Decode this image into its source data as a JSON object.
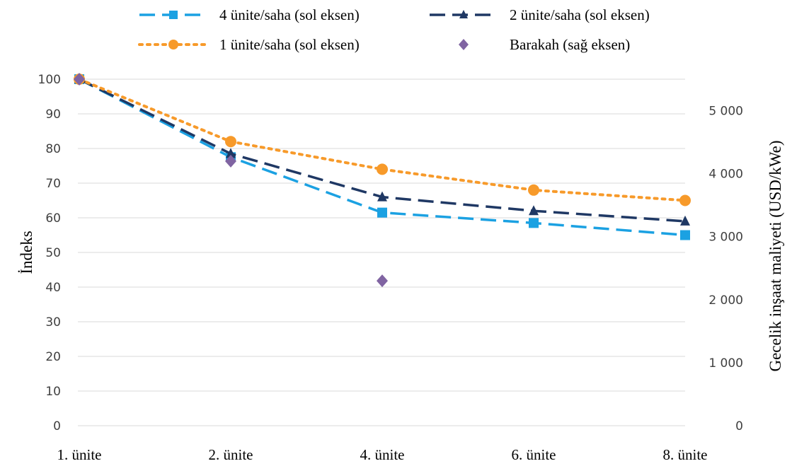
{
  "chart_data": {
    "type": "line",
    "categories": [
      "1. ünite",
      "2. ünite",
      "4. ünite",
      "6. ünite",
      "8. ünite"
    ],
    "y_left": {
      "label": "İndeks",
      "min": 0,
      "max": 100,
      "step": 10,
      "ticks": [
        "0",
        "10",
        "20",
        "30",
        "40",
        "50",
        "60",
        "70",
        "80",
        "90",
        "100"
      ]
    },
    "y_right": {
      "label": "Gecelik inşaat maliyeti (USD/kWe)",
      "min": 0,
      "max": 5500,
      "step": 1000,
      "ticks": [
        "0",
        "1 000",
        "2 000",
        "3 000",
        "4 000",
        "5 000"
      ]
    },
    "grid": true,
    "legend_position": "top",
    "series": [
      {
        "name": "4 ünite/saha (sol eksen)",
        "axis": "left",
        "color": "#1ba1e2",
        "marker": "square",
        "dash": "dash",
        "values": [
          100,
          77.5,
          61.5,
          58.5,
          55
        ]
      },
      {
        "name": "2 ünite/saha (sol eksen)",
        "axis": "left",
        "color": "#1f3864",
        "marker": "triangle",
        "dash": "dash",
        "values": [
          100,
          78.5,
          66,
          62,
          59
        ]
      },
      {
        "name": "1 ünite/saha (sol eksen)",
        "axis": "left",
        "color": "#f79a2a",
        "marker": "circle",
        "dash": "dot",
        "values": [
          100,
          82,
          74,
          68,
          65
        ]
      },
      {
        "name": "Barakah (sağ eksen)",
        "axis": "right",
        "color": "#8064a2",
        "marker": "diamond",
        "dash": "none",
        "values": [
          5500,
          4200,
          2300,
          null,
          null
        ]
      }
    ]
  }
}
